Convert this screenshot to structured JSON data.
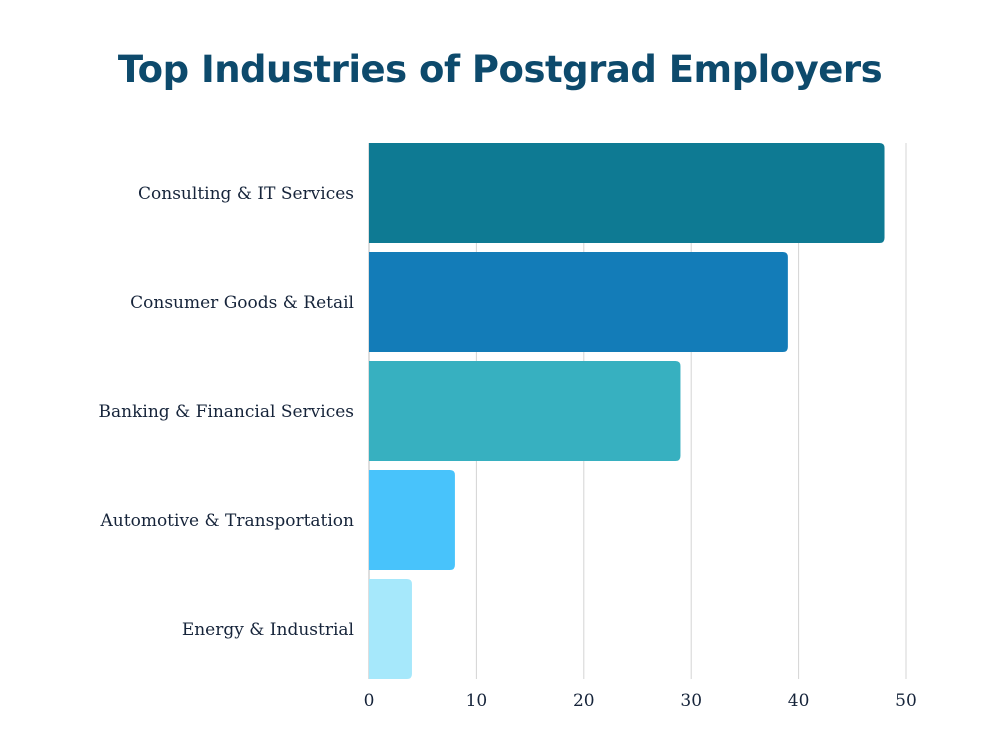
{
  "chart_data": {
    "type": "bar",
    "orientation": "horizontal",
    "title": "Top Industries of Postgrad Employers",
    "categories": [
      "Consulting & IT Services",
      "Consumer Goods & Retail",
      "Banking & Financial Services",
      "Automotive & Transportation",
      "Energy & Industrial"
    ],
    "values": [
      48,
      39,
      29,
      8,
      4
    ],
    "colors": [
      "#0e7a93",
      "#137cb8",
      "#37b0c0",
      "#48c3fb",
      "#a6e8fb"
    ],
    "xlim": [
      0,
      50
    ],
    "xticks": [
      "0",
      "10",
      "20",
      "30",
      "40",
      "50"
    ],
    "grid": true,
    "legend": "none",
    "colors_meta": {
      "title": "#0d4a6c",
      "text": "#16243a",
      "grid": "#d4d4d4"
    }
  }
}
